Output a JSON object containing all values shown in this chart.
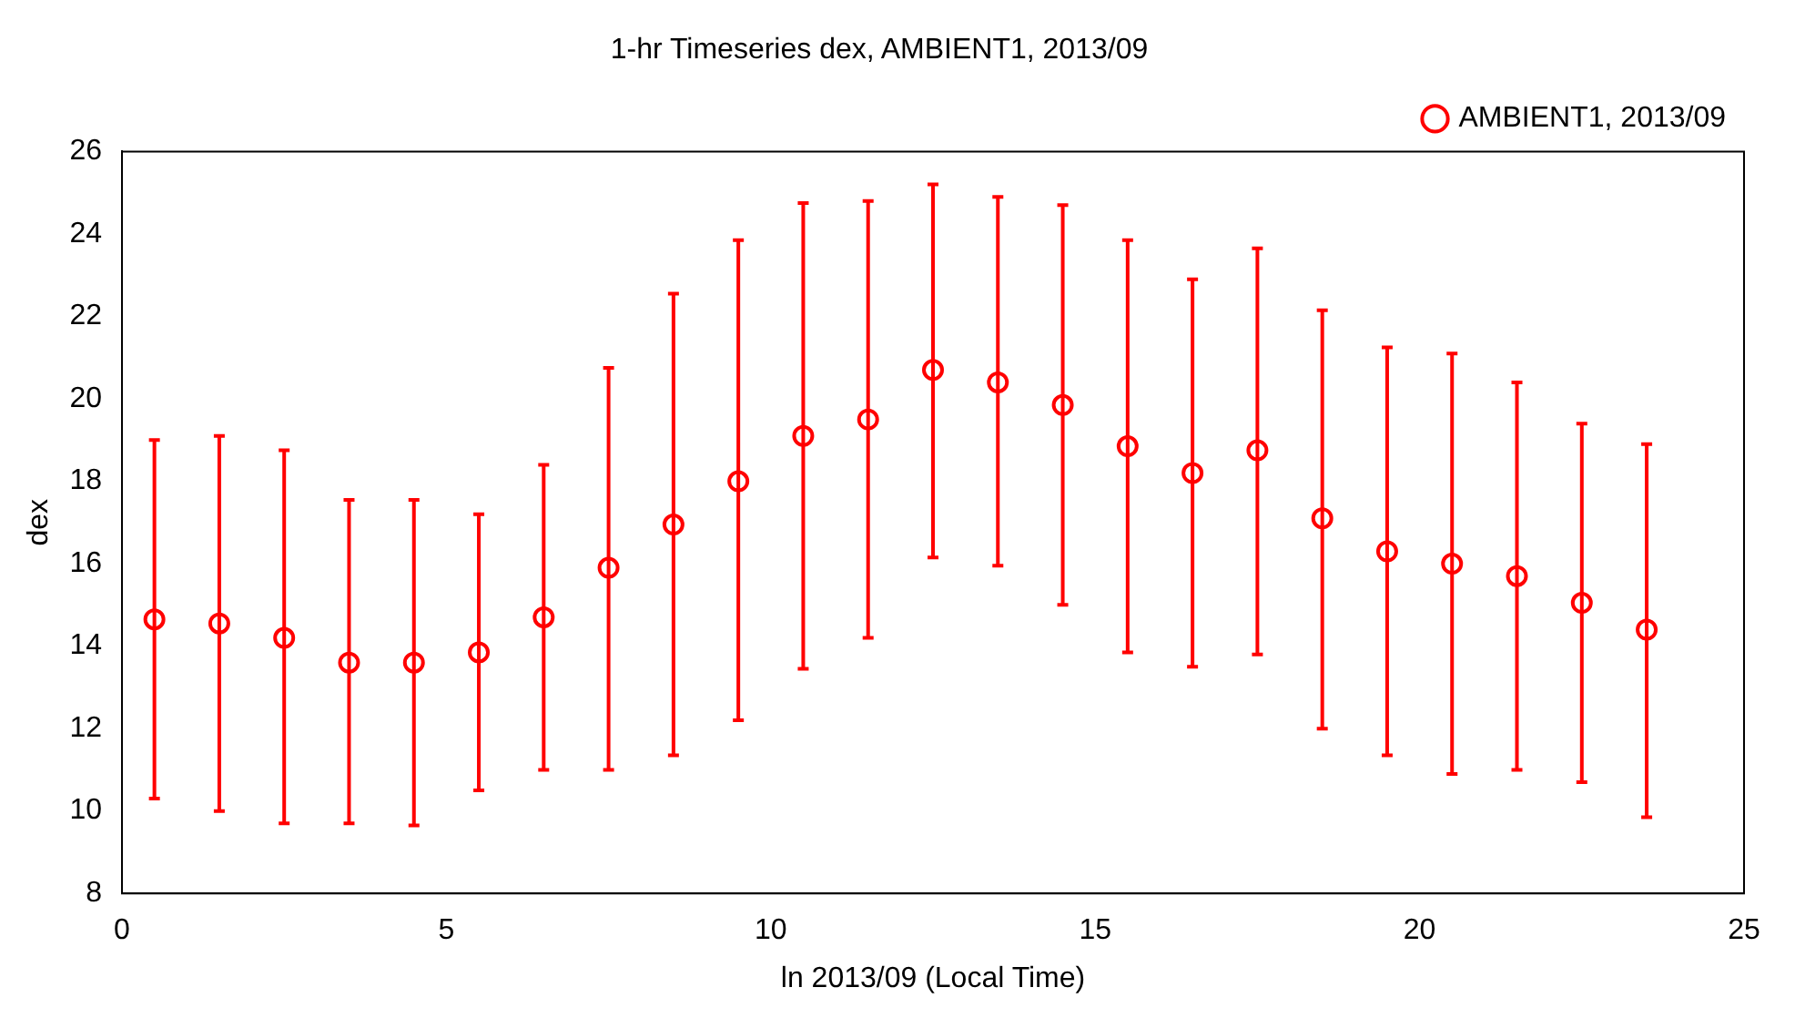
{
  "chart_data": {
    "type": "scatter",
    "title": "1-hr Timeseries dex, AMBIENT1, 2013/09",
    "xlabel": "ln 2013/09 (Local Time)",
    "ylabel": "dex",
    "x": [
      0.5,
      1.5,
      2.5,
      3.5,
      4.5,
      5.5,
      6.5,
      7.5,
      8.5,
      9.5,
      10.5,
      11.5,
      12.5,
      13.5,
      14.5,
      15.5,
      16.5,
      17.5,
      18.5,
      19.5,
      20.5,
      21.5,
      22.5,
      23.5
    ],
    "series": [
      {
        "name": "AMBIENT1, 2013/09",
        "color": "#ff0000",
        "values": [
          14.65,
          14.55,
          14.2,
          13.6,
          13.6,
          13.85,
          14.7,
          15.9,
          16.95,
          18.0,
          19.1,
          19.5,
          20.7,
          20.4,
          19.85,
          18.85,
          18.2,
          18.75,
          17.1,
          16.3,
          16.0,
          15.7,
          15.05,
          14.4
        ],
        "errors": [
          [
            10.3,
            19.0
          ],
          [
            10.0,
            19.1
          ],
          [
            9.7,
            18.75
          ],
          [
            9.7,
            17.55
          ],
          [
            9.65,
            17.55
          ],
          [
            10.5,
            17.2
          ],
          [
            11.0,
            18.4
          ],
          [
            11.0,
            20.75
          ],
          [
            11.35,
            22.55
          ],
          [
            12.2,
            23.85
          ],
          [
            13.45,
            24.75
          ],
          [
            14.2,
            24.8
          ],
          [
            16.15,
            25.2
          ],
          [
            15.95,
            24.9
          ],
          [
            15.0,
            24.7
          ],
          [
            13.85,
            23.85
          ],
          [
            13.5,
            22.9
          ],
          [
            13.8,
            23.65
          ],
          [
            12.0,
            22.15
          ],
          [
            11.35,
            21.25
          ],
          [
            10.9,
            21.1
          ],
          [
            11.0,
            20.4
          ],
          [
            10.7,
            19.4
          ],
          [
            9.85,
            18.9
          ]
        ]
      }
    ],
    "xlim": [
      0,
      25
    ],
    "xticks": [
      0,
      5,
      10,
      15,
      20,
      25
    ],
    "ylim": [
      8,
      26
    ],
    "yticks": [
      8,
      10,
      12,
      14,
      16,
      18,
      20,
      22,
      24,
      26
    ],
    "grid": false,
    "legend": "top right",
    "marker": "circle"
  }
}
